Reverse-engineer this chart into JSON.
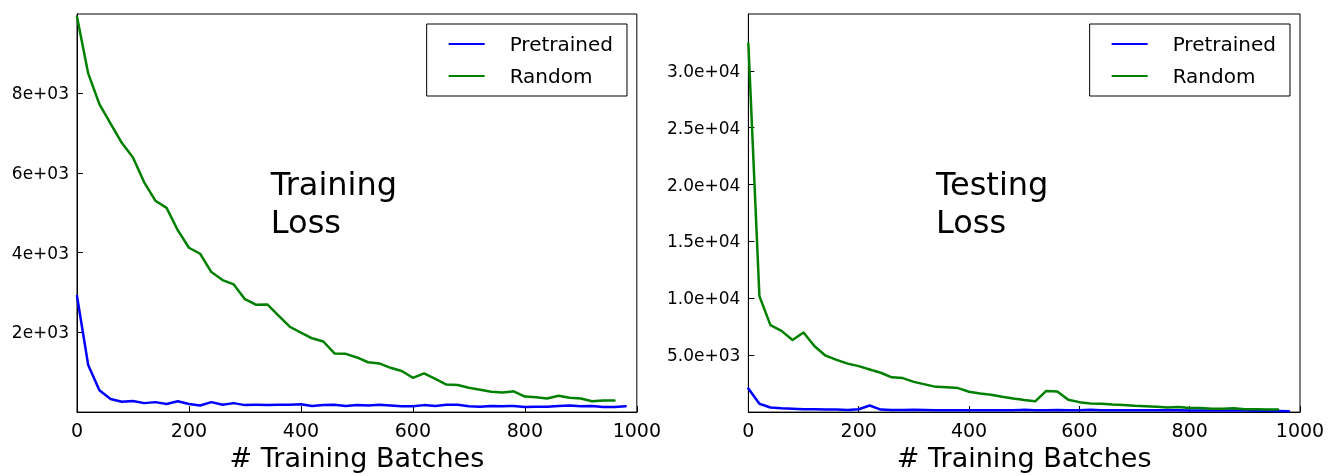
{
  "chart_data": [
    {
      "type": "line",
      "xlabel": "# Training Batches",
      "annotations": [
        "Training Loss"
      ],
      "legend": "top right",
      "grid": false,
      "marker": "none",
      "line_style": "solid",
      "xlim": [
        0,
        1000
      ],
      "xticks": [
        0,
        200,
        400,
        600,
        800,
        1000
      ],
      "ylim": [
        0,
        9980
      ],
      "yticks": [
        {
          "value": 2000,
          "label": "2e+03"
        },
        {
          "value": 4000,
          "label": "4e+03"
        },
        {
          "value": 6000,
          "label": "6e+03"
        },
        {
          "value": 8000,
          "label": "8e+03"
        }
      ],
      "series": [
        {
          "name": "Pretrained",
          "color": "#0000ff",
          "x": [
            0,
            20,
            40,
            60,
            80,
            100,
            120,
            140,
            160,
            180,
            200,
            220,
            240,
            260,
            280,
            300,
            320,
            340,
            360,
            380,
            400,
            420,
            440,
            460,
            480,
            500,
            520,
            540,
            560,
            580,
            600,
            620,
            640,
            660,
            680,
            700,
            720,
            740,
            760,
            780,
            800,
            820,
            840,
            860,
            880,
            900,
            920,
            940,
            960,
            980
          ],
          "values": [
            2910,
            1180,
            545,
            330,
            260,
            280,
            225,
            250,
            205,
            270,
            205,
            165,
            250,
            185,
            225,
            175,
            185,
            175,
            185,
            185,
            195,
            155,
            175,
            185,
            155,
            175,
            165,
            185,
            165,
            145,
            145,
            175,
            155,
            185,
            185,
            145,
            135,
            155,
            145,
            155,
            125,
            135,
            135,
            155,
            165,
            145,
            155,
            125,
            125,
            145
          ]
        },
        {
          "name": "Random",
          "color": "#008000",
          "x": [
            0,
            20,
            40,
            60,
            80,
            100,
            120,
            140,
            160,
            180,
            200,
            220,
            240,
            260,
            280,
            300,
            320,
            340,
            360,
            380,
            400,
            420,
            440,
            460,
            480,
            500,
            520,
            540,
            560,
            580,
            600,
            620,
            640,
            660,
            680,
            700,
            720,
            740,
            760,
            780,
            800,
            820,
            840,
            860,
            880,
            900,
            920,
            940,
            960
          ],
          "values": [
            9910,
            8490,
            7720,
            7230,
            6750,
            6380,
            5760,
            5300,
            5120,
            4560,
            4120,
            3970,
            3510,
            3310,
            3200,
            2830,
            2690,
            2700,
            2420,
            2140,
            1990,
            1850,
            1770,
            1470,
            1460,
            1370,
            1250,
            1220,
            1110,
            1030,
            860,
            970,
            830,
            690,
            680,
            610,
            560,
            510,
            490,
            520,
            390,
            370,
            340,
            410,
            360,
            340,
            270,
            290,
            290
          ]
        }
      ]
    },
    {
      "type": "line",
      "xlabel": "# Training Batches",
      "annotations": [
        "Testing Loss"
      ],
      "legend": "top right",
      "grid": false,
      "marker": "none",
      "line_style": "solid",
      "xlim": [
        0,
        1000
      ],
      "xticks": [
        0,
        200,
        400,
        600,
        800,
        1000
      ],
      "ylim": [
        0,
        35000
      ],
      "yticks": [
        {
          "value": 5000,
          "label": "5.0e+03"
        },
        {
          "value": 10000,
          "label": "1.0e+04"
        },
        {
          "value": 15000,
          "label": "1.5e+04"
        },
        {
          "value": 20000,
          "label": "2.0e+04"
        },
        {
          "value": 25000,
          "label": "2.5e+04"
        },
        {
          "value": 30000,
          "label": "3.0e+04"
        }
      ],
      "series": [
        {
          "name": "Pretrained",
          "color": "#0000ff",
          "x": [
            0,
            20,
            40,
            60,
            80,
            100,
            120,
            140,
            160,
            180,
            200,
            220,
            240,
            260,
            280,
            300,
            320,
            340,
            360,
            380,
            400,
            420,
            440,
            460,
            480,
            500,
            520,
            540,
            560,
            580,
            600,
            620,
            640,
            660,
            680,
            700,
            720,
            740,
            760,
            780,
            800,
            820,
            840,
            860,
            880,
            900,
            920,
            940,
            960,
            980
          ],
          "values": [
            2080,
            730,
            400,
            330,
            290,
            255,
            255,
            220,
            220,
            180,
            255,
            580,
            220,
            180,
            180,
            200,
            180,
            160,
            160,
            160,
            160,
            160,
            160,
            160,
            160,
            200,
            160,
            160,
            190,
            160,
            160,
            200,
            160,
            160,
            160,
            160,
            160,
            160,
            160,
            160,
            150,
            150,
            150,
            150,
            150,
            140,
            120,
            110,
            100,
            70
          ]
        },
        {
          "name": "Random",
          "color": "#008000",
          "x": [
            0,
            20,
            40,
            60,
            80,
            100,
            120,
            140,
            160,
            180,
            200,
            220,
            240,
            260,
            280,
            300,
            320,
            340,
            360,
            380,
            400,
            420,
            440,
            460,
            480,
            500,
            520,
            540,
            560,
            580,
            600,
            620,
            640,
            660,
            680,
            700,
            720,
            740,
            760,
            780,
            800,
            820,
            840,
            860,
            880,
            900,
            920,
            940,
            960
          ],
          "values": [
            32400,
            10200,
            7650,
            7140,
            6340,
            7000,
            5790,
            4960,
            4590,
            4260,
            4040,
            3750,
            3460,
            3060,
            2990,
            2660,
            2440,
            2220,
            2190,
            2110,
            1790,
            1640,
            1530,
            1350,
            1200,
            1060,
            950,
            1860,
            1820,
            1090,
            875,
            765,
            730,
            660,
            620,
            550,
            510,
            475,
            400,
            440,
            365,
            365,
            290,
            290,
            330,
            255,
            255,
            220,
            220
          ]
        }
      ]
    }
  ]
}
